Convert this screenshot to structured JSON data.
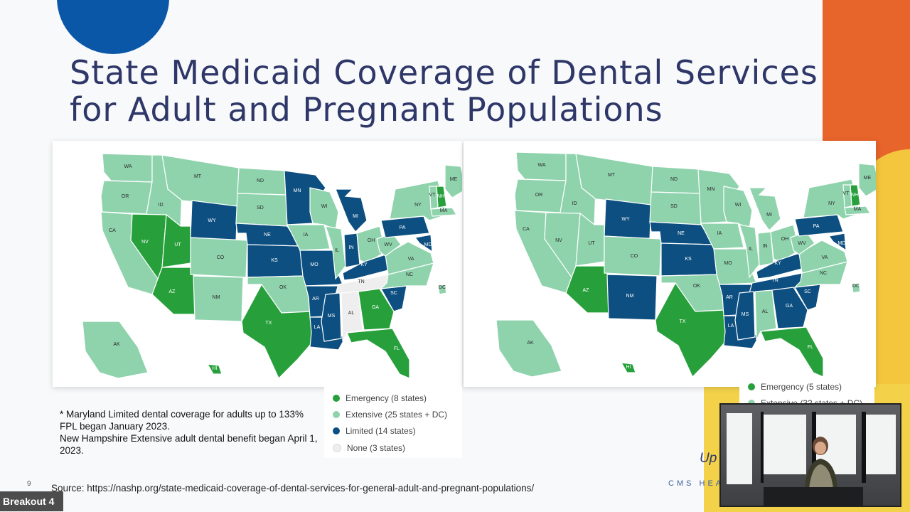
{
  "slide": {
    "title_line1": "State Medicaid Coverage of Dental Services",
    "title_line2": "for Adult and Pregnant Populations",
    "page_number": "9",
    "note_line1": "* Maryland Limited dental coverage for adults up to 133% FPL began January 2023.",
    "note_line2": "New Hampshire Extensive adult dental benefit began April 1, 2023.",
    "source": "Source: https://nashp.org/state-medicaid-coverage-of-dental-services-for-general-adult-and-pregnant-populations/",
    "footer_brand": "CMS HEA",
    "partial_text": "Up"
  },
  "legend_left": [
    {
      "label": "Emergency (8 states)",
      "color": "#27a03c"
    },
    {
      "label": "Extensive (25 states + DC)",
      "color": "#8fd3ad"
    },
    {
      "label": "Limited (14 states)",
      "color": "#0d4f80"
    },
    {
      "label": "None (3 states)",
      "color": "#eeeeee"
    }
  ],
  "legend_right": [
    {
      "label": "Emergency (5 states)",
      "color": "#27a03c"
    },
    {
      "label": "Extensive (32 states + DC)",
      "color": "#8fd3ad"
    }
  ],
  "colors": {
    "emergency": "#27a03c",
    "extensive": "#8fd3ad",
    "limited": "#0d4f80",
    "none": "#eeeeee",
    "title": "#2e3768",
    "accent_blue": "#0a57a8",
    "accent_orange": "#e7642b",
    "accent_yellow": "#f4c63e"
  },
  "maps": {
    "left": {
      "states": [
        {
          "abbr": "WA",
          "cat": "extensive"
        },
        {
          "abbr": "OR",
          "cat": "extensive"
        },
        {
          "abbr": "CA",
          "cat": "extensive"
        },
        {
          "abbr": "ID",
          "cat": "extensive"
        },
        {
          "abbr": "NV",
          "cat": "emergency"
        },
        {
          "abbr": "MT",
          "cat": "extensive"
        },
        {
          "abbr": "WY",
          "cat": "limited"
        },
        {
          "abbr": "UT",
          "cat": "emergency"
        },
        {
          "abbr": "AZ",
          "cat": "emergency"
        },
        {
          "abbr": "CO",
          "cat": "extensive"
        },
        {
          "abbr": "NM",
          "cat": "extensive"
        },
        {
          "abbr": "ND",
          "cat": "extensive"
        },
        {
          "abbr": "SD",
          "cat": "extensive"
        },
        {
          "abbr": "NE",
          "cat": "limited"
        },
        {
          "abbr": "KS",
          "cat": "limited"
        },
        {
          "abbr": "OK",
          "cat": "extensive"
        },
        {
          "abbr": "TX",
          "cat": "emergency"
        },
        {
          "abbr": "MN",
          "cat": "limited"
        },
        {
          "abbr": "IA",
          "cat": "extensive"
        },
        {
          "abbr": "MO",
          "cat": "limited"
        },
        {
          "abbr": "AR",
          "cat": "limited"
        },
        {
          "abbr": "LA",
          "cat": "limited"
        },
        {
          "abbr": "WI",
          "cat": "extensive"
        },
        {
          "abbr": "IL",
          "cat": "extensive"
        },
        {
          "abbr": "MI",
          "cat": "limited"
        },
        {
          "abbr": "IN",
          "cat": "limited"
        },
        {
          "abbr": "OH",
          "cat": "extensive"
        },
        {
          "abbr": "KY",
          "cat": "limited"
        },
        {
          "abbr": "TN",
          "cat": "none"
        },
        {
          "abbr": "MS",
          "cat": "limited"
        },
        {
          "abbr": "AL",
          "cat": "none"
        },
        {
          "abbr": "GA",
          "cat": "emergency"
        },
        {
          "abbr": "FL",
          "cat": "emergency"
        },
        {
          "abbr": "SC",
          "cat": "limited"
        },
        {
          "abbr": "NC",
          "cat": "extensive"
        },
        {
          "abbr": "VA",
          "cat": "extensive"
        },
        {
          "abbr": "WV",
          "cat": "extensive"
        },
        {
          "abbr": "PA",
          "cat": "limited"
        },
        {
          "abbr": "NY",
          "cat": "extensive"
        },
        {
          "abbr": "ME",
          "cat": "extensive"
        },
        {
          "abbr": "NH",
          "cat": "emergency"
        },
        {
          "abbr": "VT",
          "cat": "extensive"
        },
        {
          "abbr": "MA",
          "cat": "extensive"
        },
        {
          "abbr": "MD",
          "cat": "limited"
        },
        {
          "abbr": "DC",
          "cat": "extensive"
        },
        {
          "abbr": "AK",
          "cat": "extensive"
        },
        {
          "abbr": "HI",
          "cat": "emergency"
        }
      ]
    },
    "right": {
      "states": [
        {
          "abbr": "WA",
          "cat": "extensive"
        },
        {
          "abbr": "OR",
          "cat": "extensive"
        },
        {
          "abbr": "CA",
          "cat": "extensive"
        },
        {
          "abbr": "ID",
          "cat": "extensive"
        },
        {
          "abbr": "NV",
          "cat": "extensive"
        },
        {
          "abbr": "MT",
          "cat": "extensive"
        },
        {
          "abbr": "WY",
          "cat": "limited"
        },
        {
          "abbr": "UT",
          "cat": "extensive"
        },
        {
          "abbr": "AZ",
          "cat": "emergency"
        },
        {
          "abbr": "CO",
          "cat": "extensive"
        },
        {
          "abbr": "NM",
          "cat": "limited"
        },
        {
          "abbr": "ND",
          "cat": "extensive"
        },
        {
          "abbr": "SD",
          "cat": "extensive"
        },
        {
          "abbr": "NE",
          "cat": "limited"
        },
        {
          "abbr": "KS",
          "cat": "limited"
        },
        {
          "abbr": "OK",
          "cat": "extensive"
        },
        {
          "abbr": "TX",
          "cat": "emergency"
        },
        {
          "abbr": "MN",
          "cat": "extensive"
        },
        {
          "abbr": "IA",
          "cat": "extensive"
        },
        {
          "abbr": "MO",
          "cat": "extensive"
        },
        {
          "abbr": "AR",
          "cat": "limited"
        },
        {
          "abbr": "LA",
          "cat": "limited"
        },
        {
          "abbr": "WI",
          "cat": "extensive"
        },
        {
          "abbr": "IL",
          "cat": "extensive"
        },
        {
          "abbr": "MI",
          "cat": "extensive"
        },
        {
          "abbr": "IN",
          "cat": "extensive"
        },
        {
          "abbr": "OH",
          "cat": "extensive"
        },
        {
          "abbr": "KY",
          "cat": "limited"
        },
        {
          "abbr": "TN",
          "cat": "limited"
        },
        {
          "abbr": "MS",
          "cat": "limited"
        },
        {
          "abbr": "AL",
          "cat": "extensive"
        },
        {
          "abbr": "GA",
          "cat": "limited"
        },
        {
          "abbr": "FL",
          "cat": "emergency"
        },
        {
          "abbr": "SC",
          "cat": "limited"
        },
        {
          "abbr": "NC",
          "cat": "extensive"
        },
        {
          "abbr": "VA",
          "cat": "extensive"
        },
        {
          "abbr": "WV",
          "cat": "extensive"
        },
        {
          "abbr": "PA",
          "cat": "limited"
        },
        {
          "abbr": "NY",
          "cat": "extensive"
        },
        {
          "abbr": "ME",
          "cat": "extensive"
        },
        {
          "abbr": "NH",
          "cat": "emergency"
        },
        {
          "abbr": "VT",
          "cat": "extensive"
        },
        {
          "abbr": "MA",
          "cat": "extensive"
        },
        {
          "abbr": "MD",
          "cat": "limited"
        },
        {
          "abbr": "DC",
          "cat": "extensive"
        },
        {
          "abbr": "AK",
          "cat": "extensive"
        },
        {
          "abbr": "HI",
          "cat": "emergency"
        }
      ]
    }
  },
  "overlay": {
    "breakout_label": "Breakout 4"
  }
}
